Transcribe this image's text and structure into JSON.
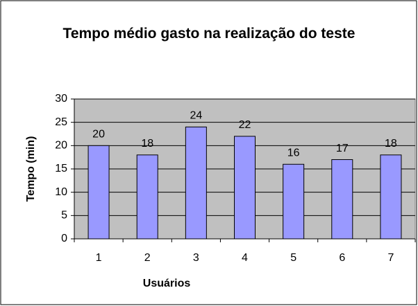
{
  "chart_data": {
    "type": "bar",
    "title": "Tempo médio gasto na realização do teste",
    "x_label": "Usuários",
    "y_label": "Tempo (min)",
    "categories": [
      "1",
      "2",
      "3",
      "4",
      "5",
      "6",
      "7"
    ],
    "values": [
      20,
      18,
      24,
      22,
      16,
      17,
      18
    ],
    "color": "#9999ff",
    "ylim": [
      0,
      30
    ],
    "yticks": [
      0,
      5,
      10,
      15,
      20,
      25,
      30
    ],
    "grid": true
  }
}
